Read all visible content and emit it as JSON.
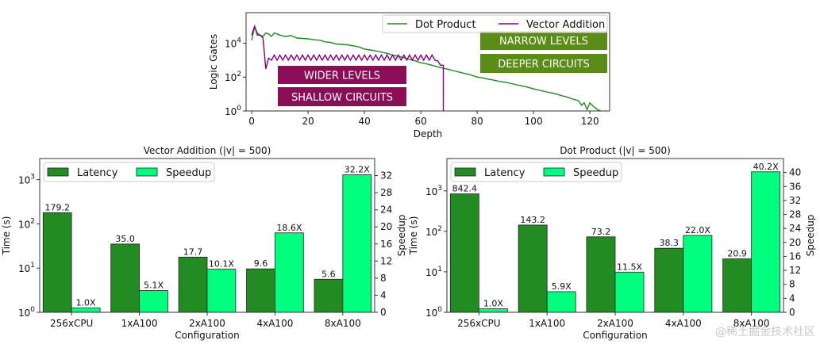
{
  "chart_data": [
    {
      "type": "line",
      "title": "",
      "xlabel": "Depth",
      "ylabel": "Logic Gates",
      "xlim": [
        -2,
        127
      ],
      "ylim": [
        1,
        630000
      ],
      "yscale": "log",
      "xticks": [
        "0",
        "20",
        "40",
        "60",
        "80",
        "100",
        "120"
      ],
      "yticks": [
        {
          "base": "10",
          "exp": "0"
        },
        {
          "base": "10",
          "exp": "2"
        },
        {
          "base": "10",
          "exp": "4"
        }
      ],
      "legend": "top-right",
      "series": [
        {
          "name": "Dot Product",
          "color": "#1f8a1f",
          "x": [
            0,
            1,
            2,
            3,
            4,
            5,
            6,
            7,
            8,
            10,
            12,
            14,
            16,
            18,
            20,
            22,
            24,
            26,
            28,
            30,
            32,
            34,
            36,
            38,
            40,
            42,
            44,
            46,
            48,
            50,
            52,
            54,
            56,
            58,
            60,
            62,
            64,
            66,
            68,
            70,
            72,
            74,
            76,
            78,
            80,
            82,
            84,
            86,
            88,
            90,
            92,
            94,
            96,
            98,
            100,
            102,
            104,
            106,
            108,
            110,
            112,
            114,
            116,
            117,
            118,
            119,
            120,
            121,
            122,
            123,
            124
          ],
          "y": [
            15000,
            90000,
            40000,
            30000,
            25000,
            40000,
            35000,
            25000,
            40000,
            30000,
            25000,
            28000,
            20000,
            19000,
            18000,
            16000,
            15000,
            12000,
            11000,
            9000,
            8500,
            8000,
            7000,
            6000,
            4500,
            4000,
            3500,
            3000,
            2500,
            2000,
            1700,
            1400,
            1100,
            900,
            700,
            600,
            500,
            400,
            330,
            280,
            230,
            190,
            160,
            130,
            100,
            90,
            75,
            65,
            55,
            50,
            42,
            35,
            30,
            25,
            20,
            17,
            14,
            12,
            10,
            8,
            6.5,
            5,
            4,
            2.2,
            3,
            1.2,
            3,
            2,
            1.5,
            1.1,
            1
          ]
        },
        {
          "name": "Vector Addition",
          "color": "#800080",
          "x": [
            0,
            1,
            2,
            3,
            4,
            5,
            6,
            7,
            8,
            9,
            10,
            11,
            12,
            13,
            14,
            15,
            16,
            17,
            18,
            19,
            20,
            21,
            22,
            23,
            24,
            25,
            26,
            27,
            28,
            29,
            30,
            31,
            32,
            33,
            34,
            35,
            36,
            37,
            38,
            39,
            40,
            41,
            42,
            43,
            44,
            45,
            46,
            47,
            48,
            49,
            50,
            51,
            52,
            53,
            54,
            55,
            56,
            57,
            58,
            59,
            60,
            61,
            62,
            63,
            64,
            65,
            66,
            67,
            68,
            68
          ],
          "y": [
            30000,
            100000,
            30000,
            30000,
            20000,
            300,
            1300,
            1000,
            2000,
            1000,
            2000,
            1000,
            2000,
            1000,
            2000,
            1000,
            2000,
            1000,
            2000,
            1000,
            2000,
            1000,
            2000,
            1000,
            2000,
            1000,
            2000,
            1000,
            2000,
            1000,
            2000,
            1000,
            2000,
            1000,
            2000,
            1000,
            2000,
            1000,
            2000,
            1000,
            2000,
            1000,
            2000,
            1000,
            2000,
            1000,
            2000,
            1000,
            2000,
            1000,
            2000,
            1000,
            2000,
            1000,
            2000,
            1000,
            2000,
            1000,
            2000,
            1000,
            2000,
            1000,
            2000,
            1000,
            2000,
            1000,
            900,
            500,
            500,
            1
          ]
        }
      ],
      "annotations": [
        {
          "text": "WIDER LEVELS",
          "color": "#8b0d56"
        },
        {
          "text": "SHALLOW  CIRCUITS",
          "color": "#8b0d56"
        },
        {
          "text": "NARROW LEVELS",
          "color": "#5b8c17"
        },
        {
          "text": "DEEPER  CIRCUITS",
          "color": "#5b8c17"
        }
      ]
    },
    {
      "type": "bar",
      "title": "Vector Addition (|v| = 500)",
      "xlabel": "Configuration",
      "ylabel": "Time (s)",
      "y2label": "Speedup",
      "categories": [
        "256xCPU",
        "1xA100",
        "2xA100",
        "4xA100",
        "8xA100"
      ],
      "yscale": "log",
      "ylim": [
        1,
        3000
      ],
      "y2lim": [
        0,
        36
      ],
      "yticks": [
        {
          "base": "10",
          "exp": "0"
        },
        {
          "base": "10",
          "exp": "1"
        },
        {
          "base": "10",
          "exp": "2"
        },
        {
          "base": "10",
          "exp": "3"
        }
      ],
      "y2ticks": [
        0,
        4,
        8,
        12,
        16,
        20,
        24,
        28,
        32
      ],
      "legend": "top-left",
      "series": [
        {
          "name": "Latency",
          "axis": "left",
          "color": "#228b22",
          "values": [
            179.2,
            35.0,
            17.7,
            9.6,
            5.6
          ],
          "labels": [
            "179.2",
            "35.0",
            "17.7",
            "9.6",
            "5.6"
          ]
        },
        {
          "name": "Speedup",
          "axis": "right",
          "color": "#00ff7f",
          "values": [
            1.0,
            5.1,
            10.1,
            18.6,
            32.2
          ],
          "labels": [
            "1.0X",
            "5.1X",
            "10.1X",
            "18.6X",
            "32.2X"
          ]
        }
      ]
    },
    {
      "type": "bar",
      "title": "Dot Product (|v| = 500)",
      "xlabel": "Configuration",
      "ylabel": "Time (s)",
      "y2label": "Speedup",
      "categories": [
        "256xCPU",
        "1xA100",
        "2xA100",
        "4xA100",
        "8xA100"
      ],
      "yscale": "log",
      "ylim": [
        1,
        6300
      ],
      "y2lim": [
        0,
        44
      ],
      "yticks": [
        {
          "base": "10",
          "exp": "0"
        },
        {
          "base": "10",
          "exp": "1"
        },
        {
          "base": "10",
          "exp": "2"
        },
        {
          "base": "10",
          "exp": "3"
        }
      ],
      "y2ticks": [
        0,
        4,
        8,
        12,
        16,
        20,
        24,
        28,
        32,
        36,
        40
      ],
      "legend": "top-left",
      "series": [
        {
          "name": "Latency",
          "axis": "left",
          "color": "#228b22",
          "values": [
            842.4,
            143.2,
            73.2,
            38.3,
            20.9
          ],
          "labels": [
            "842.4",
            "143.2",
            "73.2",
            "38.3",
            "20.9"
          ]
        },
        {
          "name": "Speedup",
          "axis": "right",
          "color": "#00ff7f",
          "values": [
            1.0,
            5.9,
            11.5,
            22.0,
            40.2
          ],
          "labels": [
            "1.0X",
            "5.9X",
            "11.5X",
            "22.0X",
            "40.2X"
          ]
        }
      ]
    }
  ],
  "watermark": "@稀土掘金技术社区"
}
